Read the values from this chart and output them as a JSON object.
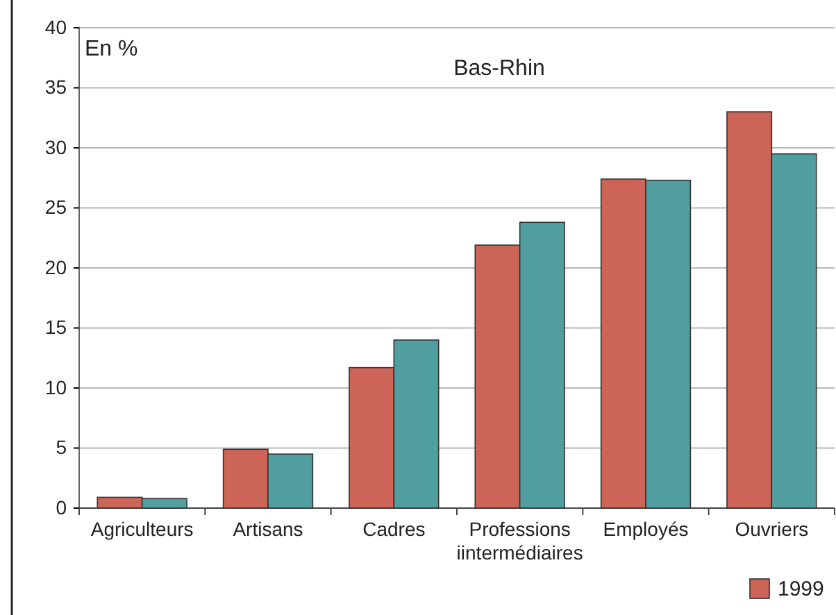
{
  "chart_data": {
    "type": "bar",
    "title": "Bas-Rhin",
    "ylabel": "En %",
    "categories": [
      "Agriculteurs",
      "Artisans",
      "Cadres",
      "Professions\niintermédiaires",
      "Employés",
      "Ouvriers"
    ],
    "series": [
      {
        "name": "1999",
        "color": "#cd6458",
        "values": [
          0.9,
          4.9,
          11.7,
          21.9,
          27.4,
          33.0
        ]
      },
      {
        "color": "#519ea0",
        "values": [
          0.8,
          4.5,
          14.0,
          23.8,
          27.3,
          29.5
        ]
      }
    ],
    "ylim": [
      0,
      40
    ],
    "yticks": [
      0,
      5,
      10,
      15,
      20,
      25,
      30,
      35,
      40
    ],
    "grid": "y",
    "legend": "bottom right"
  }
}
